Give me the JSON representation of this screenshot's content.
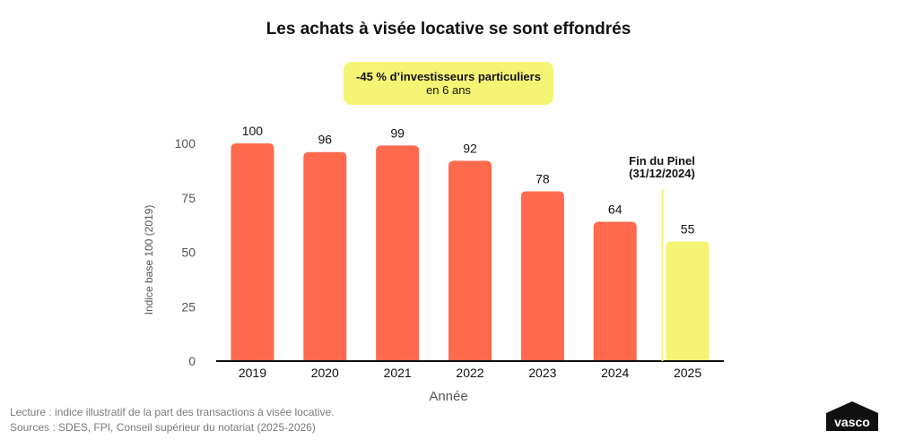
{
  "title": "Les achats à visée locative se sont effondrés",
  "callout": {
    "line1": "-45 % d’investisseurs particuliers",
    "line2": "en 6 ans"
  },
  "annotation": {
    "line1": "Fin du Pinel",
    "line2": "(31/12/2024)"
  },
  "footer": {
    "lecture": "Lecture : indice illustratif de la part des transactions à visée locative.",
    "sources": "Sources : SDES, FPI, Conseil supérieur du notariat (2025-2026)"
  },
  "logo_text": "vasco",
  "colors": {
    "bar": "#ff6a4d",
    "highlight": "#f5f475",
    "axis_text": "#555555",
    "divider": "#f5f475"
  },
  "chart_data": {
    "type": "bar",
    "categories": [
      "2019",
      "2020",
      "2021",
      "2022",
      "2023",
      "2024",
      "2025"
    ],
    "values": [
      100,
      96,
      99,
      92,
      78,
      64,
      55
    ],
    "highlighted_categories": [
      "2025"
    ],
    "xlabel": "Année",
    "ylabel": "Indice base 100 (2019)",
    "ylim": [
      0,
      100
    ],
    "yticks": [
      0,
      25,
      50,
      75,
      100
    ],
    "grid": false,
    "data_labels": true
  }
}
